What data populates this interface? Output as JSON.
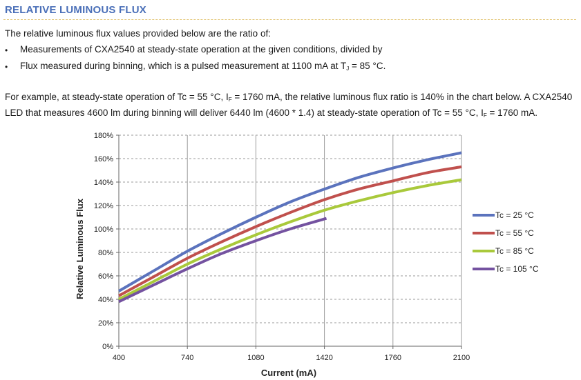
{
  "section": {
    "title": "RELATIVE LUMINOUS FLUX"
  },
  "intro": {
    "line1": "The relative luminous flux values provided below are the ratio of:",
    "bullet1": "Measurements of CXA2540 at steady-state operation at the given conditions, divided by",
    "bullet2_pre": "Flux measured during binning, which is a pulsed measurement at 1100 mA at T",
    "bullet2_sub": "J",
    "bullet2_post": " = 85 °C.",
    "bullet_char": "•"
  },
  "example": {
    "l1_a": "For example, at steady-state operation of Tc = 55 °C, I",
    "l1_sub": "F",
    "l1_b": " = 1760 mA, the relative luminous flux ratio is 140% in the chart below. A CXA2540",
    "l2_a": "LED that measures 4600 lm during binning will deliver 6440 lm (4600 * 1.4) at steady-state operation of Tc = 55 °C, I",
    "l2_sub": "F",
    "l2_b": " = 1760 mA."
  },
  "chart_data": {
    "type": "line",
    "xlabel": "Current (mA)",
    "ylabel": "Relative Luminous Flux",
    "xlim": [
      400,
      2100
    ],
    "ylim": [
      0,
      180
    ],
    "x_ticks": [
      400,
      740,
      1080,
      1420,
      1760,
      2100
    ],
    "y_ticks": [
      0,
      20,
      40,
      60,
      80,
      100,
      120,
      140,
      160,
      180
    ],
    "y_tick_format": "percent",
    "grid": {
      "vertical": true,
      "horizontal": "dashed"
    },
    "legend_position": "right",
    "series": [
      {
        "name": "Tc = 25 °C",
        "color": "#5b73bd",
        "x": [
          400,
          570,
          740,
          910,
          1080,
          1250,
          1420,
          1590,
          1760,
          1930,
          2100
        ],
        "y": [
          47,
          64,
          81,
          96,
          110,
          123,
          134,
          144,
          152,
          159,
          165
        ]
      },
      {
        "name": "Tc = 55 °C",
        "color": "#c0504d",
        "x": [
          400,
          570,
          740,
          910,
          1080,
          1250,
          1420,
          1590,
          1760,
          1930,
          2100
        ],
        "y": [
          43,
          59,
          75,
          89,
          102,
          114,
          125,
          134,
          141,
          148,
          153
        ]
      },
      {
        "name": "Tc = 85 °C",
        "color": "#a9c93b",
        "x": [
          400,
          570,
          740,
          910,
          1080,
          1250,
          1420,
          1590,
          1760,
          1930,
          2100
        ],
        "y": [
          40,
          55,
          70,
          83,
          95,
          106,
          116,
          124,
          131,
          137,
          142
        ]
      },
      {
        "name": "Tc = 105 °C",
        "color": "#7452a0",
        "x": [
          400,
          570,
          740,
          910,
          1080,
          1250,
          1430
        ],
        "y": [
          38,
          52,
          66,
          79,
          90,
          100,
          109
        ]
      }
    ]
  }
}
